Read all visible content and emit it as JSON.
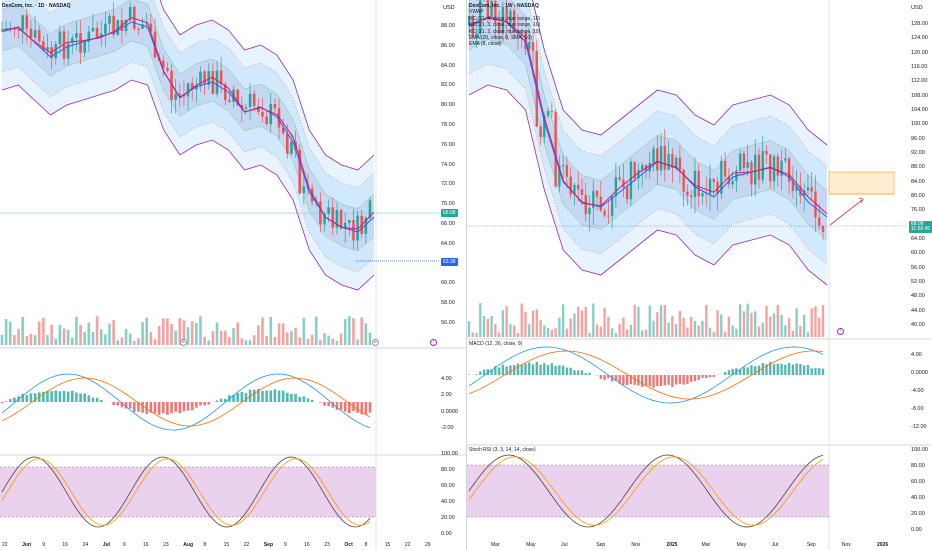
{
  "left": {
    "legend_title": "DexCom, Inc. · 1D · NASDAQ",
    "price_axis": [
      "88.00",
      "86.00",
      "84.00",
      "82.00",
      "80.00",
      "78.00",
      "76.00",
      "74.00",
      "72.00",
      "70.00",
      "66.00",
      "64.00",
      "62.00",
      "60.00",
      "58.00",
      "56.00"
    ],
    "last_price_tag": "68.08",
    "low_price_tag": "63.38",
    "macd_axis": [
      "4.00",
      "2.00",
      "0.0000",
      "-2.00"
    ],
    "stoch_axis": [
      "100.00",
      "80.00",
      "60.00",
      "40.00",
      "20.00",
      "0.00"
    ],
    "time_axis": [
      "22",
      "Jun",
      "9",
      "16",
      "24",
      "Jul",
      "9",
      "16",
      "23",
      "Aug",
      "8",
      "15",
      "22",
      "Sep",
      "9",
      "16",
      "23",
      "Oct",
      "8",
      "15",
      "22",
      "29"
    ],
    "time_bold": [
      "Jun",
      "Jul",
      "Aug",
      "Sep",
      "Oct"
    ]
  },
  "right": {
    "currency": "USD",
    "legend_lines": [
      "DexCom, Inc. · 1W · NASDAQ",
      "VWAP",
      "KC (21, 4, close, true range, 10)",
      "KC (21, 3, close, true range, 10)",
      "KC (21, 2, close, true range, 10)",
      "EMA (20, close, 0, SMA, 10)",
      "EMA (8, close)"
    ],
    "price_axis": [
      "128.00",
      "124.00",
      "120.00",
      "116.00",
      "112.00",
      "108.00",
      "104.00",
      "100.00",
      "96.00",
      "92.00",
      "88.00",
      "84.00",
      "80.00",
      "76.00",
      "72.00",
      "64.00",
      "60.00",
      "56.00",
      "52.00",
      "48.00",
      "44.00",
      "40.00"
    ],
    "last_price_tag": "68.08",
    "last_price_sub": "11:56:45",
    "macd_title": "MACD (12, 26, close, 9)",
    "macd_axis": [
      "4.00",
      "0.0000",
      "-4.00",
      "-8.00",
      "-12.00"
    ],
    "stoch_title": "Stoch RSI (3, 3, 14, 14, close)",
    "stoch_axis": [
      "100.00",
      "80.00",
      "60.00",
      "40.00",
      "20.00",
      "0.00"
    ],
    "time_axis": [
      "Mar",
      "May",
      "Jul",
      "Sep",
      "Nov",
      "2025",
      "Mar",
      "May",
      "Jul",
      "Sep",
      "Nov",
      "2026"
    ],
    "time_bold": [
      "2025",
      "2026"
    ]
  },
  "colors": {
    "up": "#26a69a",
    "down": "#ef5350",
    "kc_outer": "#9c27b0",
    "ema_slow": "#2962ff",
    "ema_fast": "#d81b60",
    "stoch_band": "#e1bee7",
    "last_price": "#26a69a",
    "low_price": "#2962ff"
  }
}
